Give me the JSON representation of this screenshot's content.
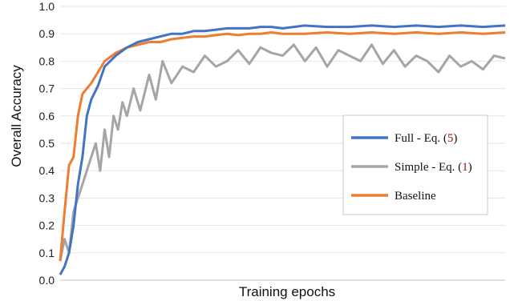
{
  "chart_data": {
    "type": "line",
    "xlabel": "Training epochs",
    "ylabel": "Overall Accuracy",
    "ylim": [
      0.0,
      1.0
    ],
    "yticks": [
      "0.0",
      "0.1",
      "0.2",
      "0.3",
      "0.4",
      "0.5",
      "0.6",
      "0.7",
      "0.8",
      "0.9",
      "1.0"
    ],
    "x_ticks_shown": false,
    "grid": true,
    "legend_position": "right",
    "series": [
      {
        "name": "Full - Eq. (5)",
        "label_main": "Full - Eq. (",
        "label_ref": "5",
        "label_end": ")",
        "color": "#4472c4",
        "x": [
          0,
          2,
          4,
          6,
          8,
          10,
          12,
          14,
          17,
          20,
          25,
          30,
          35,
          40,
          45,
          50,
          55,
          60,
          65,
          70,
          75,
          80,
          85,
          90,
          95,
          100,
          110,
          120,
          130,
          140,
          150,
          160,
          170,
          180,
          190,
          200
        ],
        "y": [
          0.02,
          0.05,
          0.1,
          0.2,
          0.35,
          0.45,
          0.6,
          0.66,
          0.71,
          0.78,
          0.82,
          0.85,
          0.87,
          0.88,
          0.89,
          0.9,
          0.9,
          0.91,
          0.91,
          0.915,
          0.92,
          0.92,
          0.92,
          0.925,
          0.925,
          0.92,
          0.93,
          0.925,
          0.925,
          0.93,
          0.925,
          0.93,
          0.925,
          0.93,
          0.925,
          0.93
        ]
      },
      {
        "name": "Simple - Eq. (1)",
        "label_main": "Simple - Eq. (",
        "label_ref": "1",
        "label_end": ")",
        "color": "#a5a5a5",
        "x": [
          0,
          2,
          4,
          6,
          8,
          10,
          12,
          14,
          16,
          18,
          20,
          22,
          24,
          26,
          28,
          30,
          33,
          36,
          40,
          43,
          46,
          50,
          55,
          60,
          65,
          70,
          75,
          80,
          85,
          90,
          95,
          100,
          105,
          110,
          115,
          120,
          125,
          130,
          135,
          140,
          145,
          150,
          155,
          160,
          165,
          170,
          175,
          180,
          185,
          190,
          195,
          200
        ],
        "y": [
          0.07,
          0.15,
          0.1,
          0.25,
          0.3,
          0.35,
          0.4,
          0.45,
          0.5,
          0.4,
          0.55,
          0.45,
          0.6,
          0.55,
          0.65,
          0.6,
          0.7,
          0.62,
          0.75,
          0.66,
          0.8,
          0.72,
          0.78,
          0.76,
          0.82,
          0.78,
          0.8,
          0.84,
          0.79,
          0.85,
          0.83,
          0.82,
          0.86,
          0.8,
          0.85,
          0.78,
          0.84,
          0.82,
          0.8,
          0.86,
          0.79,
          0.84,
          0.78,
          0.82,
          0.8,
          0.76,
          0.82,
          0.78,
          0.8,
          0.77,
          0.82,
          0.81
        ]
      },
      {
        "name": "Baseline",
        "label_main": "Baseline",
        "label_ref": "",
        "label_end": "",
        "color": "#ed7d31",
        "x": [
          0,
          2,
          4,
          6,
          8,
          10,
          12,
          14,
          17,
          20,
          25,
          30,
          35,
          40,
          45,
          50,
          55,
          60,
          65,
          70,
          75,
          80,
          85,
          90,
          95,
          100,
          110,
          120,
          130,
          140,
          150,
          160,
          170,
          180,
          190,
          200
        ],
        "y": [
          0.07,
          0.25,
          0.42,
          0.45,
          0.6,
          0.68,
          0.7,
          0.72,
          0.76,
          0.8,
          0.83,
          0.85,
          0.86,
          0.87,
          0.87,
          0.88,
          0.885,
          0.89,
          0.89,
          0.895,
          0.9,
          0.895,
          0.9,
          0.9,
          0.905,
          0.9,
          0.9,
          0.905,
          0.9,
          0.905,
          0.9,
          0.905,
          0.9,
          0.905,
          0.9,
          0.905
        ]
      }
    ]
  }
}
